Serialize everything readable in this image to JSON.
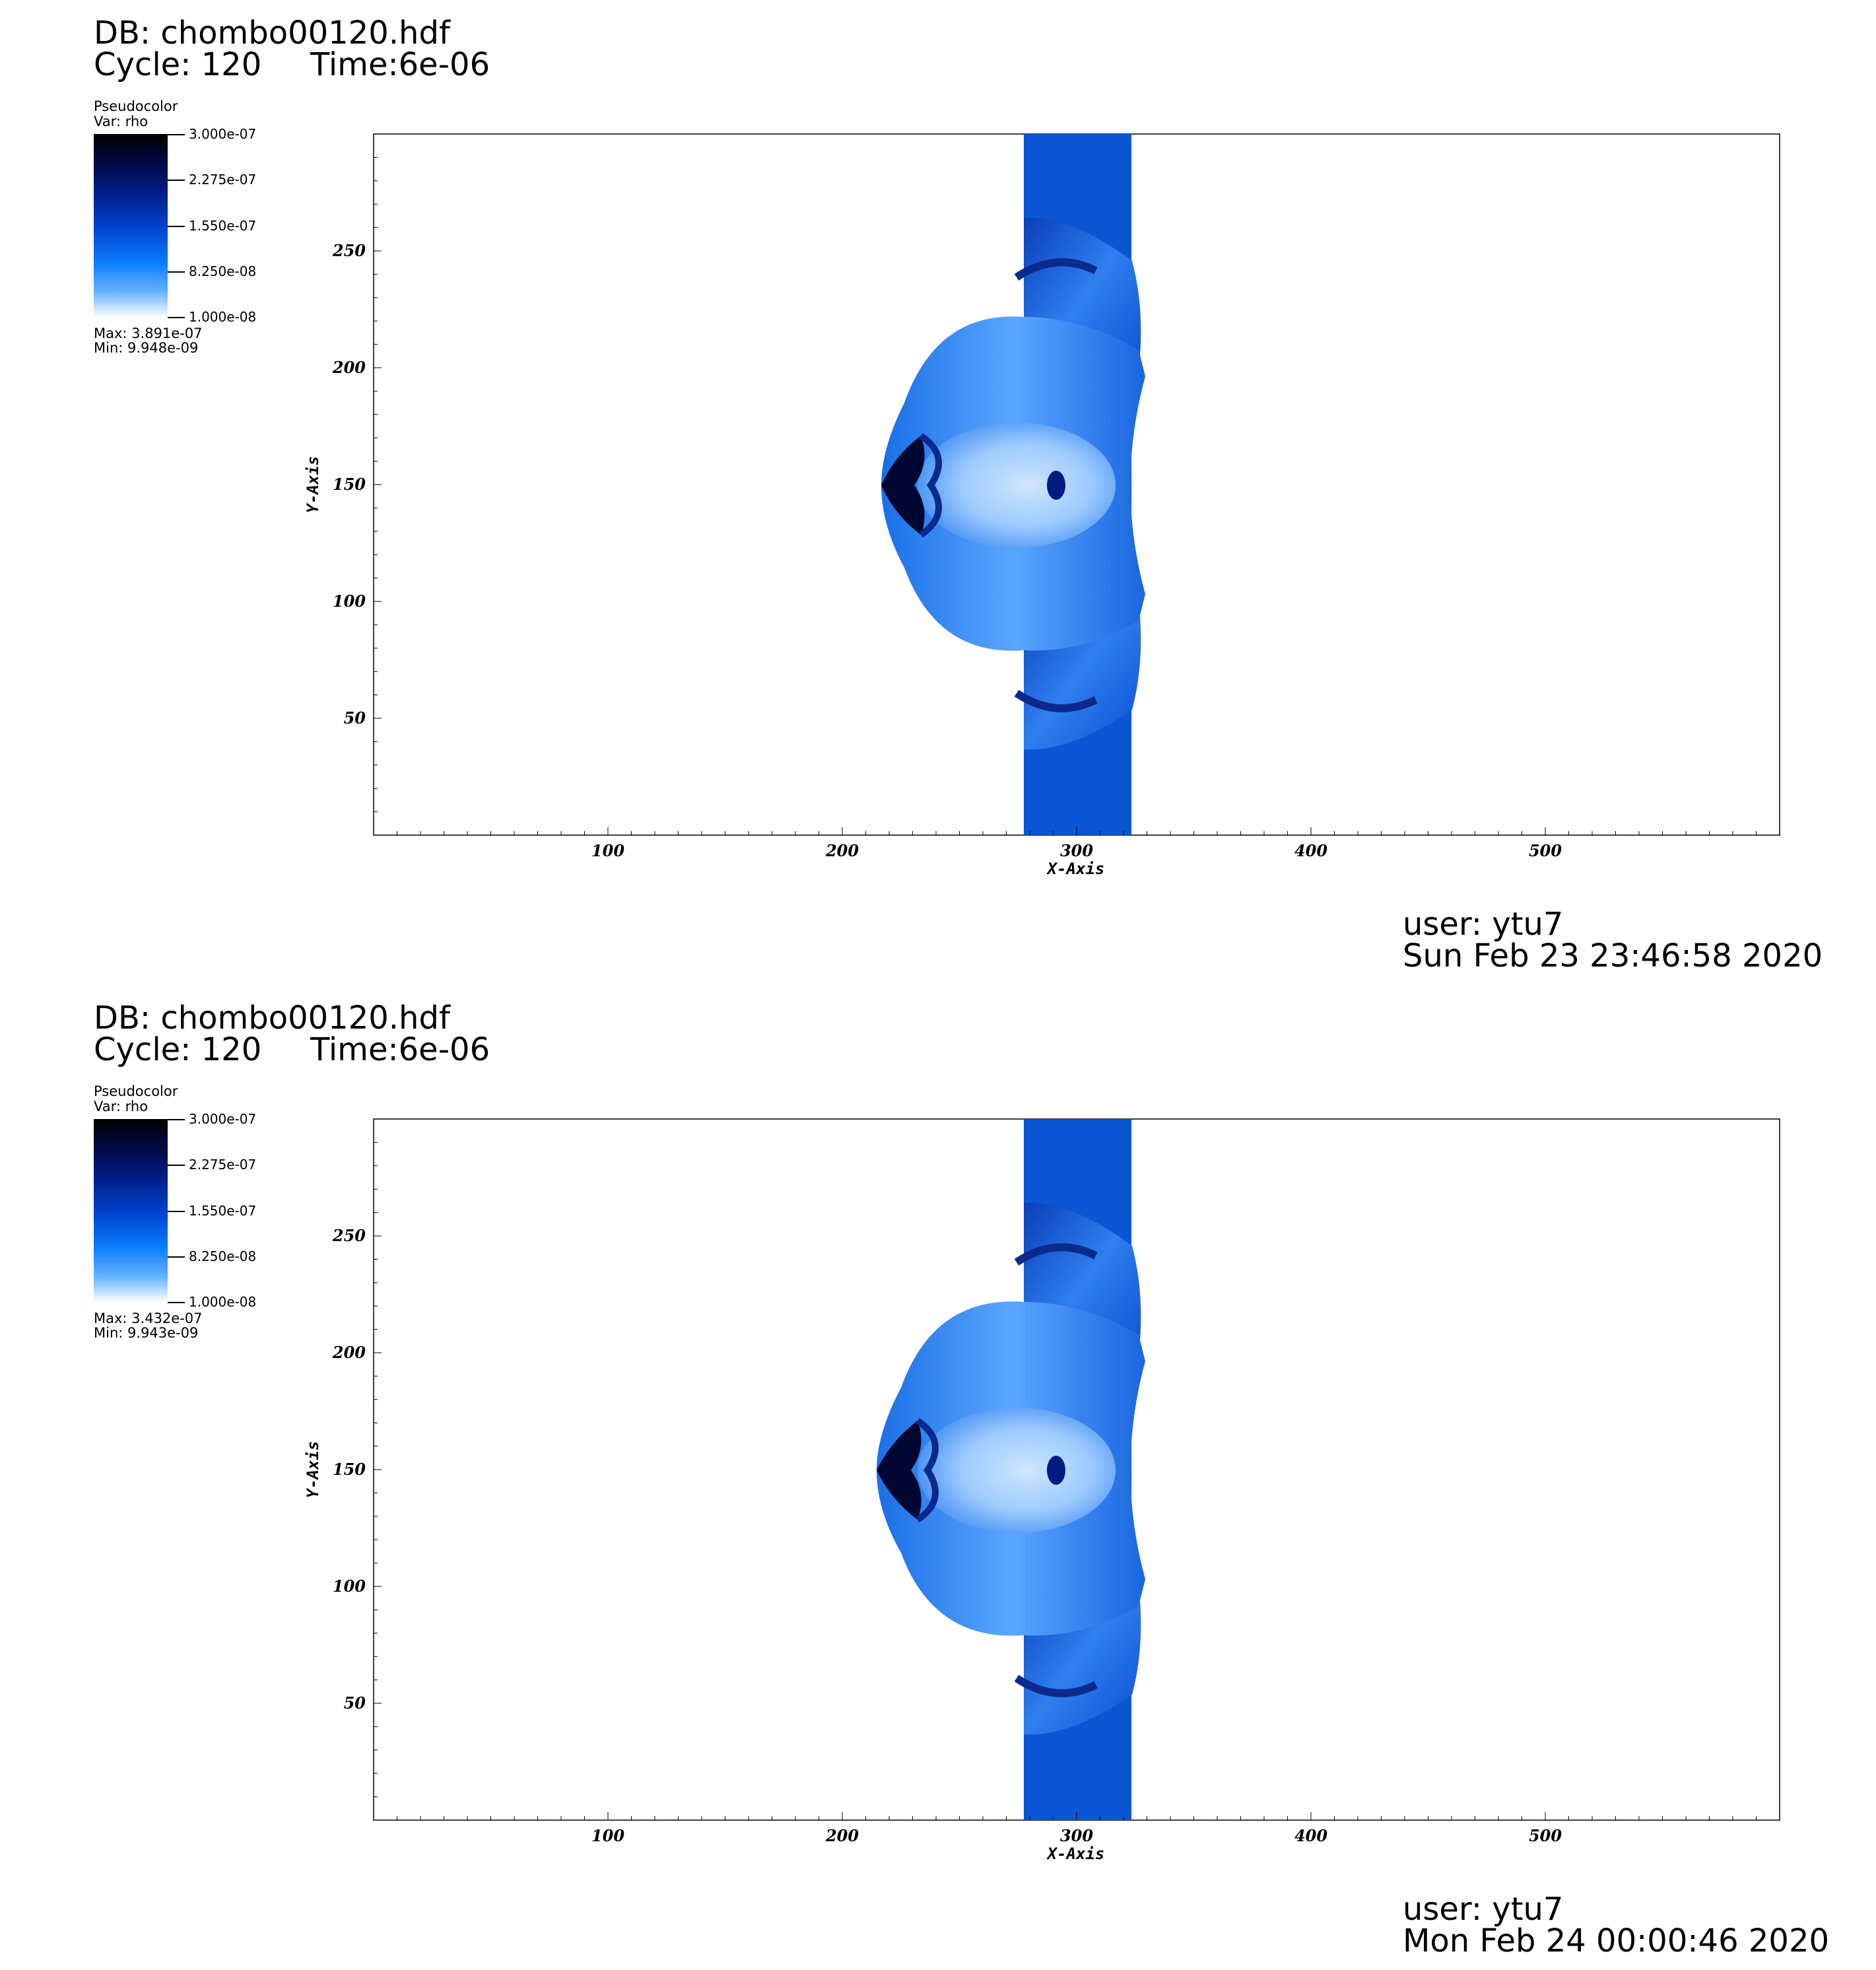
{
  "panels": [
    {
      "db": "DB: chombo00120.hdf",
      "cycle": "Cycle: 120",
      "time": "Time:6e-06",
      "legend": {
        "title": "Pseudocolor",
        "var": "Var: rho",
        "ticks": [
          "3.000e-07",
          "2.275e-07",
          "1.550e-07",
          "8.250e-08",
          "1.000e-08"
        ],
        "max": "Max:  3.891e-07",
        "min": "Min:  9.948e-09"
      },
      "user": "user: ytu7",
      "date": "Sun Feb 23 23:46:58 2020"
    },
    {
      "db": "DB: chombo00120.hdf",
      "cycle": "Cycle: 120",
      "time": "Time:6e-06",
      "legend": {
        "title": "Pseudocolor",
        "var": "Var: rho",
        "ticks": [
          "3.000e-07",
          "2.275e-07",
          "1.550e-07",
          "8.250e-08",
          "1.000e-08"
        ],
        "max": "Max:  3.432e-07",
        "min": "Min:  9.943e-09"
      },
      "user": "user: ytu7",
      "date": "Mon Feb 24 00:00:46 2020"
    }
  ],
  "chart_data": [
    {
      "type": "heatmap",
      "variable": "rho",
      "xlabel": "X-Axis",
      "ylabel": "Y-Axis",
      "xlim": [
        0,
        600
      ],
      "ylim": [
        0,
        300
      ],
      "xticks": [
        100,
        200,
        300,
        400,
        500
      ],
      "yticks": [
        50,
        100,
        150,
        200,
        250
      ],
      "colormap": [
        "#000000",
        "#001a80",
        "#0040cc",
        "#0a7cff",
        "#ffffff"
      ],
      "color_range": [
        1e-08,
        3e-07
      ]
    },
    {
      "type": "heatmap",
      "variable": "rho",
      "xlabel": "X-Axis",
      "ylabel": "Y-Axis",
      "xlim": [
        0,
        600
      ],
      "ylim": [
        0,
        300
      ],
      "xticks": [
        100,
        200,
        300,
        400,
        500
      ],
      "yticks": [
        50,
        100,
        150,
        200,
        250
      ],
      "colormap": [
        "#000000",
        "#001a80",
        "#0040cc",
        "#0a7cff",
        "#ffffff"
      ],
      "color_range": [
        1e-08,
        3e-07
      ]
    }
  ]
}
